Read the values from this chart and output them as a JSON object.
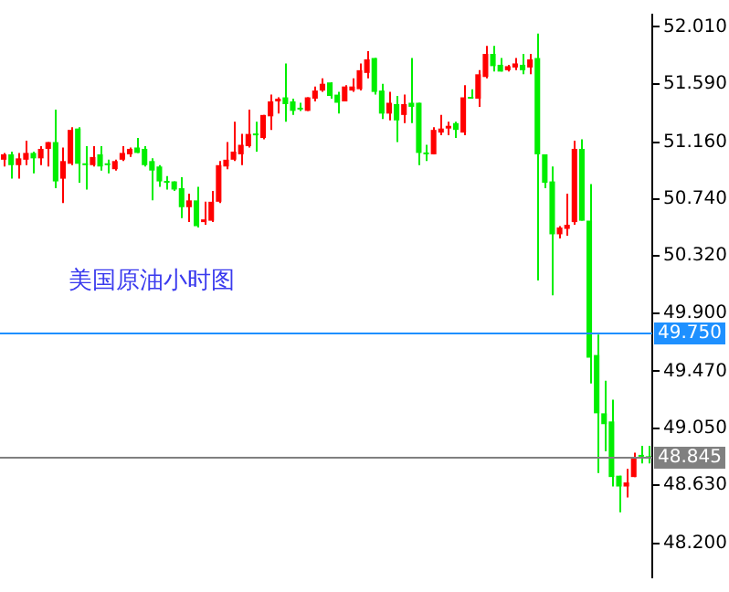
{
  "chart_data": {
    "type": "candlestick",
    "title": "美国原油小时图",
    "categories": [
      null,
      null,
      null,
      null,
      null,
      null,
      null,
      null,
      null,
      null,
      null,
      null,
      null,
      null,
      null,
      null,
      null,
      null,
      null,
      null,
      null,
      null,
      null,
      null,
      null,
      null,
      null,
      null,
      null,
      null,
      null,
      null,
      null,
      null,
      null,
      null,
      null,
      null,
      null,
      null,
      null,
      null,
      null,
      null,
      null,
      null,
      null,
      null,
      null,
      null,
      null,
      null,
      null,
      null,
      null,
      null,
      null,
      null,
      null,
      null,
      null,
      null,
      null,
      null,
      null,
      null,
      null,
      null,
      null,
      null,
      null,
      null,
      null,
      null,
      null,
      null,
      null,
      null,
      null,
      null,
      null,
      null,
      null,
      null,
      null,
      null,
      null,
      null
    ],
    "ohlc": [
      [
        51.03,
        51.08,
        50.98,
        51.07
      ],
      [
        51.07,
        51.09,
        50.89,
        50.99
      ],
      [
        50.99,
        51.08,
        50.89,
        51.04
      ],
      [
        51.03,
        51.17,
        50.99,
        51.08
      ],
      [
        51.08,
        51.09,
        50.93,
        51.04
      ],
      [
        51.04,
        51.13,
        50.99,
        51.11
      ],
      [
        51.11,
        51.16,
        50.98,
        51.16
      ],
      [
        51.16,
        51.4,
        50.82,
        50.87
      ],
      [
        50.89,
        51.12,
        50.71,
        51.02
      ],
      [
        51.0,
        51.27,
        50.99,
        51.25
      ],
      [
        51.26,
        51.27,
        50.86,
        51.0
      ],
      [
        51.0,
        51.13,
        50.81,
        50.99
      ],
      [
        50.99,
        51.13,
        50.98,
        51.05
      ],
      [
        51.07,
        51.13,
        50.95,
        50.98
      ],
      [
        51.0,
        51.03,
        50.93,
        50.99
      ],
      [
        50.96,
        51.03,
        50.95,
        51.02
      ],
      [
        51.03,
        51.13,
        51.02,
        51.08
      ],
      [
        51.07,
        51.12,
        51.05,
        51.11
      ],
      [
        51.12,
        51.19,
        51.08,
        51.08
      ],
      [
        51.11,
        51.13,
        50.98,
        50.99
      ],
      [
        51.02,
        51.04,
        50.73,
        50.95
      ],
      [
        50.98,
        50.99,
        50.83,
        50.87
      ],
      [
        50.87,
        50.91,
        50.81,
        50.86
      ],
      [
        50.87,
        50.87,
        50.8,
        50.81
      ],
      [
        50.82,
        50.9,
        50.6,
        50.68
      ],
      [
        50.68,
        50.78,
        50.57,
        50.73
      ],
      [
        50.73,
        50.83,
        50.53,
        50.54
      ],
      [
        50.57,
        50.72,
        50.55,
        50.59
      ],
      [
        50.58,
        50.8,
        50.57,
        50.72
      ],
      [
        50.72,
        51.02,
        50.71,
        50.99
      ],
      [
        50.98,
        51.16,
        50.96,
        51.03
      ],
      [
        51.03,
        51.31,
        51.02,
        51.09
      ],
      [
        51.07,
        51.22,
        50.99,
        51.14
      ],
      [
        51.13,
        51.4,
        51.12,
        51.22
      ],
      [
        51.22,
        51.31,
        51.09,
        51.21
      ],
      [
        51.19,
        51.36,
        51.18,
        51.36
      ],
      [
        51.35,
        51.51,
        51.25,
        51.46
      ],
      [
        51.46,
        51.49,
        51.37,
        51.48
      ],
      [
        51.49,
        51.74,
        51.31,
        51.44
      ],
      [
        51.46,
        51.48,
        51.36,
        51.39
      ],
      [
        51.41,
        51.45,
        51.39,
        51.4
      ],
      [
        51.39,
        51.49,
        51.39,
        51.49
      ],
      [
        51.48,
        51.57,
        51.46,
        51.54
      ],
      [
        51.54,
        51.63,
        51.53,
        51.59
      ],
      [
        51.6,
        51.6,
        51.48,
        51.5
      ],
      [
        51.51,
        51.53,
        51.37,
        51.45
      ],
      [
        51.46,
        51.58,
        51.46,
        51.57
      ],
      [
        51.54,
        51.63,
        51.53,
        51.57
      ],
      [
        51.55,
        51.74,
        51.54,
        51.69
      ],
      [
        51.67,
        51.83,
        51.63,
        51.77
      ],
      [
        51.78,
        51.78,
        51.51,
        51.53
      ],
      [
        51.54,
        51.59,
        51.33,
        51.37
      ],
      [
        51.37,
        51.53,
        51.32,
        51.45
      ],
      [
        51.44,
        51.5,
        51.16,
        51.32
      ],
      [
        51.36,
        51.51,
        51.3,
        51.44
      ],
      [
        51.45,
        51.78,
        51.3,
        51.42
      ],
      [
        51.45,
        51.45,
        50.99,
        51.08
      ],
      [
        51.08,
        51.14,
        51.02,
        51.07
      ],
      [
        51.07,
        51.27,
        51.07,
        51.25
      ],
      [
        51.23,
        51.36,
        51.21,
        51.26
      ],
      [
        51.26,
        51.31,
        51.21,
        51.28
      ],
      [
        51.3,
        51.31,
        51.19,
        51.25
      ],
      [
        51.23,
        51.58,
        51.21,
        51.49
      ],
      [
        51.49,
        51.55,
        51.48,
        51.48
      ],
      [
        51.48,
        51.69,
        51.42,
        51.66
      ],
      [
        51.64,
        51.87,
        51.63,
        51.81
      ],
      [
        51.81,
        51.87,
        51.68,
        51.72
      ],
      [
        51.73,
        51.78,
        51.68,
        51.68
      ],
      [
        51.69,
        51.73,
        51.68,
        51.72
      ],
      [
        51.71,
        51.78,
        51.69,
        51.74
      ],
      [
        51.73,
        51.81,
        51.66,
        51.69
      ],
      [
        51.71,
        51.81,
        51.66,
        51.77
      ],
      [
        51.78,
        51.96,
        50.14,
        51.07
      ],
      [
        51.07,
        51.07,
        50.82,
        50.86
      ],
      [
        50.87,
        50.98,
        50.03,
        50.48
      ],
      [
        50.48,
        50.54,
        50.45,
        50.53
      ],
      [
        50.52,
        50.78,
        50.47,
        50.55
      ],
      [
        50.57,
        51.17,
        50.55,
        51.11
      ],
      [
        51.11,
        51.18,
        50.58,
        50.58
      ],
      [
        50.58,
        50.85,
        49.38,
        49.57
      ],
      [
        49.59,
        49.74,
        48.72,
        49.16
      ],
      [
        49.16,
        49.4,
        48.88,
        49.08
      ],
      [
        49.1,
        49.26,
        48.62,
        48.69
      ],
      [
        48.7,
        48.7,
        48.43,
        48.62
      ],
      [
        48.62,
        48.75,
        48.54,
        48.65
      ],
      [
        48.69,
        48.87,
        48.69,
        48.83
      ],
      [
        48.85,
        48.92,
        48.79,
        48.84
      ],
      [
        48.84,
        48.92,
        48.79,
        48.83
      ]
    ],
    "colors": [
      "#ff0000",
      "#00ee00",
      "#ff0000",
      "#ff0000",
      "#00ee00",
      "#ff0000",
      "#ff0000",
      "#00ee00",
      "#ff0000",
      "#ff0000",
      "#00ee00",
      "#00ee00",
      "#ff0000",
      "#00ee00",
      "#00ee00",
      "#ff0000",
      "#ff0000",
      "#ff0000",
      "#00ee00",
      "#00ee00",
      "#00ee00",
      "#00ee00",
      "#00ee00",
      "#00ee00",
      "#00ee00",
      "#ff0000",
      "#00ee00",
      "#ff0000",
      "#ff0000",
      "#ff0000",
      "#ff0000",
      "#ff0000",
      "#ff0000",
      "#ff0000",
      "#00ee00",
      "#ff0000",
      "#ff0000",
      "#ff0000",
      "#00ee00",
      "#00ee00",
      "#00ee00",
      "#ff0000",
      "#ff0000",
      "#ff0000",
      "#00ee00",
      "#00ee00",
      "#ff0000",
      "#ff0000",
      "#ff0000",
      "#ff0000",
      "#00ee00",
      "#00ee00",
      "#ff0000",
      "#00ee00",
      "#ff0000",
      "#00ee00",
      "#00ee00",
      "#00ee00",
      "#ff0000",
      "#ff0000",
      "#ff0000",
      "#00ee00",
      "#ff0000",
      "#00ee00",
      "#ff0000",
      "#ff0000",
      "#00ee00",
      "#00ee00",
      "#ff0000",
      "#ff0000",
      "#00ee00",
      "#ff0000",
      "#00ee00",
      "#00ee00",
      "#00ee00",
      "#ff0000",
      "#ff0000",
      "#ff0000",
      "#00ee00",
      "#00ee00",
      "#00ee00",
      "#00ee00",
      "#00ee00",
      "#00ee00",
      "#ff0000",
      "#ff0000",
      "#00ee00",
      "#00ee00"
    ],
    "ylim": [
      47.95,
      52.1
    ],
    "yticks": [
      {
        "value": 52.01,
        "label": "52.010"
      },
      {
        "value": 51.59,
        "label": "51.590"
      },
      {
        "value": 51.16,
        "label": "51.160"
      },
      {
        "value": 50.74,
        "label": "50.740"
      },
      {
        "value": 50.32,
        "label": "50.320"
      },
      {
        "value": 49.9,
        "label": "49.900"
      },
      {
        "value": 49.47,
        "label": "49.470"
      },
      {
        "value": 49.05,
        "label": "49.050"
      },
      {
        "value": 48.63,
        "label": "48.630"
      },
      {
        "value": 48.2,
        "label": "48.200"
      }
    ],
    "ref_lines": [
      {
        "axis": "y",
        "value": 49.75,
        "label": "49.750",
        "color": "#1e90ff"
      },
      {
        "axis": "y",
        "value": 48.845,
        "label": "48.845",
        "color": "#808080"
      }
    ],
    "tick_labels": "y"
  }
}
